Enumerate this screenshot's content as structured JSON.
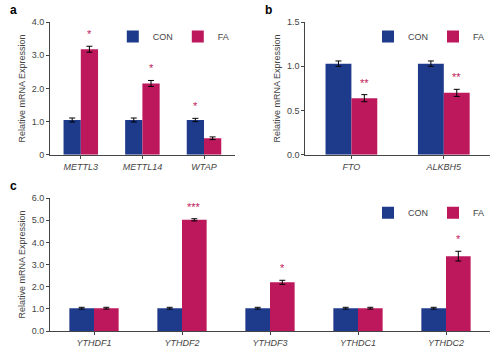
{
  "chart_data": [
    {
      "type": "bar",
      "title": "a",
      "categories": [
        "METTL3",
        "METTL14",
        "WTAP"
      ],
      "series": [
        {
          "name": "CON",
          "color": "#1e3a8a",
          "values": [
            1.05,
            1.05,
            1.05
          ],
          "errors": [
            0.06,
            0.06,
            0.05
          ]
        },
        {
          "name": "FA",
          "color": "#be185d",
          "values": [
            3.18,
            2.15,
            0.5
          ],
          "errors": [
            0.09,
            0.09,
            0.04
          ]
        }
      ],
      "annotations": [
        {
          "text": "*",
          "category": "METTL3",
          "series": "FA",
          "color": "#be185d"
        },
        {
          "text": "*",
          "category": "METTL14",
          "series": "FA",
          "color": "#be185d"
        },
        {
          "text": "*",
          "category": "WTAP",
          "series": "CON",
          "color": "#be185d"
        }
      ],
      "ylabel": "Relative mRNA Expression",
      "ylim": [
        0,
        4.0
      ],
      "yticks": [
        0,
        {
          "value": 1.0,
          "label": "1.0"
        },
        {
          "value": 2.0,
          "label": "2.0"
        },
        {
          "value": 3.0,
          "label": "3.0"
        },
        {
          "value": 4.0,
          "label": "4.0"
        }
      ],
      "grid": false,
      "legend": "upper right"
    },
    {
      "type": "bar",
      "title": "b",
      "categories": [
        "FTO",
        "ALKBH5"
      ],
      "series": [
        {
          "name": "CON",
          "color": "#1e3a8a",
          "values": [
            1.03,
            1.03
          ],
          "errors": [
            0.03,
            0.03
          ]
        },
        {
          "name": "FA",
          "color": "#be185d",
          "values": [
            0.64,
            0.7
          ],
          "errors": [
            0.04,
            0.04
          ]
        }
      ],
      "annotations": [
        {
          "text": "**",
          "category": "FTO",
          "series": "FA",
          "color": "#be185d"
        },
        {
          "text": "**",
          "category": "ALKBH5",
          "series": "FA",
          "color": "#be185d"
        }
      ],
      "ylabel": "Relative mRNA Expression",
      "ylim": [
        0,
        1.5
      ],
      "yticks": [
        {
          "value": 0.0,
          "label": "0.0"
        },
        0.5,
        {
          "value": 1.0,
          "label": "1.0"
        },
        1.5
      ],
      "grid": false,
      "legend": "upper right"
    },
    {
      "type": "bar",
      "title": "c",
      "categories": [
        "YTHDF1",
        "YTHDF2",
        "YTHDF3",
        "YTHDC1",
        "YTHDC2"
      ],
      "series": [
        {
          "name": "CON",
          "color": "#1e3a8a",
          "values": [
            1.03,
            1.03,
            1.03,
            1.03,
            1.03
          ],
          "errors": [
            0.04,
            0.04,
            0.04,
            0.04,
            0.04
          ]
        },
        {
          "name": "FA",
          "color": "#be185d",
          "values": [
            1.03,
            5.02,
            2.2,
            1.03,
            3.38
          ],
          "errors": [
            0.04,
            0.05,
            0.09,
            0.04,
            0.22
          ]
        }
      ],
      "annotations": [
        {
          "text": "***",
          "category": "YTHDF2",
          "series": "FA",
          "color": "#be185d"
        },
        {
          "text": "*",
          "category": "YTHDF3",
          "series": "FA",
          "color": "#be185d"
        },
        {
          "text": "*",
          "category": "YTHDC2",
          "series": "FA",
          "color": "#be185d"
        }
      ],
      "ylabel": "Relative mRNA Expression",
      "ylim": [
        0,
        6.0
      ],
      "yticks": [
        {
          "value": 0.0,
          "label": "0.0"
        },
        {
          "value": 1.0,
          "label": "1.0"
        },
        {
          "value": 2.0,
          "label": "2.0"
        },
        {
          "value": 3.0,
          "label": "3.0"
        },
        {
          "value": 4.0,
          "label": "4.0"
        },
        {
          "value": 5.0,
          "label": "5.0"
        },
        {
          "value": 6.0,
          "label": "6.0"
        }
      ],
      "grid": false,
      "legend": "upper right"
    }
  ]
}
